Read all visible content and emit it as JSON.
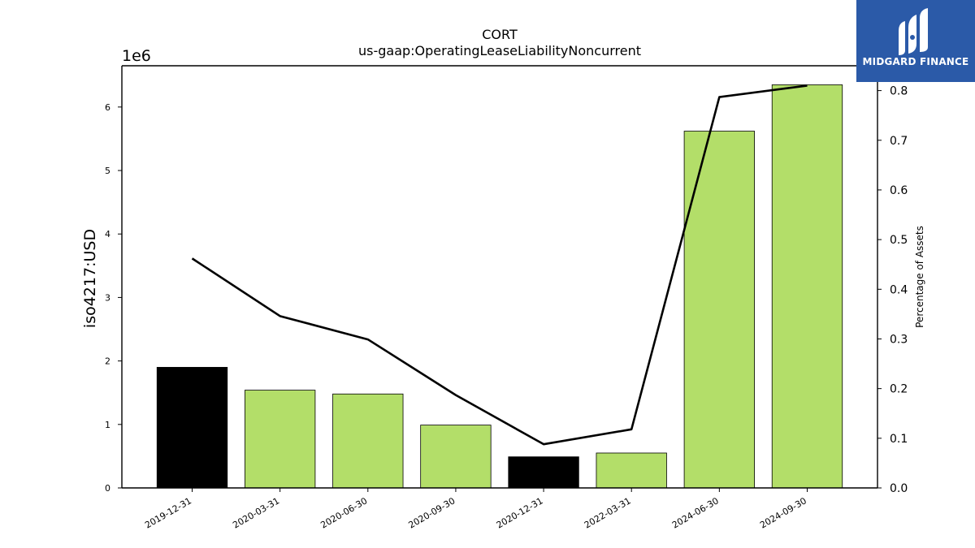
{
  "logo": {
    "text": "MIDGARD FINANCE",
    "color": "#2b5aa8"
  },
  "chart_data": {
    "type": "bar",
    "title": "CORT",
    "subtitle": "us-gaap:OperatingLeaseLiabilityNoncurrent",
    "ylabel": "iso4217:USD",
    "y2label": "Percentage of Assets",
    "y_scale_label": "1e6",
    "ylim": [
      0,
      6.65
    ],
    "y2lim": [
      0,
      0.85
    ],
    "yticks": [
      0,
      1,
      2,
      3,
      4,
      5,
      6
    ],
    "y2ticks": [
      "0.0",
      "0.1",
      "0.2",
      "0.3",
      "0.4",
      "0.5",
      "0.6",
      "0.7",
      "0.8"
    ],
    "categories": [
      "2019-12-31",
      "2020-03-31",
      "2020-06-30",
      "2020-09-30",
      "2020-12-31",
      "2022-03-31",
      "2024-06-30",
      "2024-09-30"
    ],
    "series": [
      {
        "type": "bar",
        "axis": "left",
        "values": [
          1.9,
          1.54,
          1.48,
          0.99,
          0.49,
          0.55,
          5.62,
          6.35
        ],
        "colors": [
          "#000000",
          "#b3de69",
          "#b3de69",
          "#b3de69",
          "#000000",
          "#b3de69",
          "#b3de69",
          "#b3de69"
        ]
      },
      {
        "type": "line",
        "axis": "right",
        "values": [
          0.462,
          0.346,
          0.299,
          0.187,
          0.088,
          0.118,
          0.787,
          0.81
        ],
        "color": "#000000"
      }
    ],
    "grid": false
  }
}
